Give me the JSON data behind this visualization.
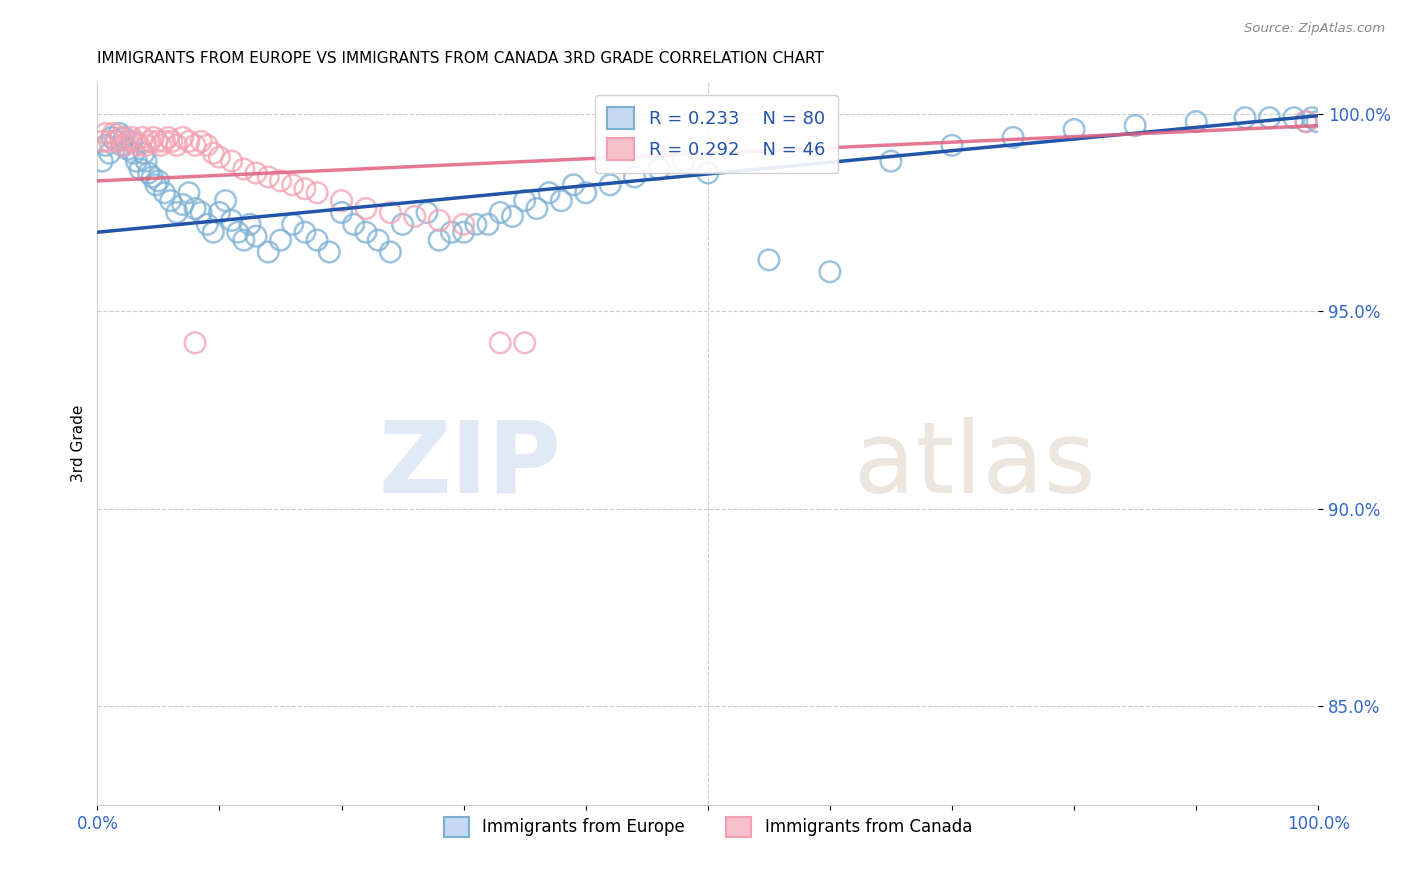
{
  "title": "IMMIGRANTS FROM EUROPE VS IMMIGRANTS FROM CANADA 3RD GRADE CORRELATION CHART",
  "source": "Source: ZipAtlas.com",
  "ylabel": "3rd Grade",
  "legend_blue_label": "Immigrants from Europe",
  "legend_pink_label": "Immigrants from Canada",
  "legend_r_blue": "R = 0.233",
  "legend_n_blue": "N = 80",
  "legend_r_pink": "R = 0.292",
  "legend_n_pink": "N = 46",
  "blue_color": "#7bafd4",
  "pink_color": "#f4a0b0",
  "blue_line_color": "#2255aa",
  "pink_line_color": "#e06080",
  "watermark_zip": "ZIP",
  "watermark_atlas": "atlas",
  "xlim": [
    0.0,
    1.0
  ],
  "ylim": [
    0.825,
    1.008
  ],
  "yticks": [
    0.85,
    0.9,
    0.95,
    1.0
  ],
  "ytick_labels": [
    "85.0%",
    "90.0%",
    "95.0%",
    "100.0%"
  ],
  "blue_line_x0": 0.0,
  "blue_line_y0": 0.97,
  "blue_line_x1": 1.0,
  "blue_line_y1": 0.9995,
  "pink_line_x0": 0.0,
  "pink_line_y0": 0.983,
  "pink_line_x1": 1.0,
  "pink_line_y1": 0.997,
  "blue_x": [
    0.004,
    0.007,
    0.01,
    0.012,
    0.015,
    0.018,
    0.02,
    0.022,
    0.025,
    0.028,
    0.03,
    0.032,
    0.035,
    0.038,
    0.04,
    0.042,
    0.045,
    0.048,
    0.05,
    0.055,
    0.06,
    0.065,
    0.07,
    0.075,
    0.08,
    0.085,
    0.09,
    0.095,
    0.1,
    0.105,
    0.11,
    0.115,
    0.12,
    0.125,
    0.13,
    0.14,
    0.15,
    0.16,
    0.17,
    0.18,
    0.19,
    0.2,
    0.21,
    0.22,
    0.23,
    0.24,
    0.25,
    0.27,
    0.29,
    0.31,
    0.33,
    0.35,
    0.37,
    0.39,
    0.28,
    0.3,
    0.32,
    0.34,
    0.36,
    0.38,
    0.4,
    0.42,
    0.44,
    0.46,
    0.48,
    0.5,
    0.55,
    0.6,
    0.65,
    0.7,
    0.75,
    0.8,
    0.85,
    0.9,
    0.94,
    0.96,
    0.98,
    0.99,
    0.995,
    0.999
  ],
  "blue_y": [
    0.988,
    0.992,
    0.99,
    0.994,
    0.993,
    0.995,
    0.992,
    0.994,
    0.991,
    0.993,
    0.99,
    0.988,
    0.986,
    0.99,
    0.988,
    0.985,
    0.984,
    0.982,
    0.983,
    0.98,
    0.978,
    0.975,
    0.977,
    0.98,
    0.976,
    0.975,
    0.972,
    0.97,
    0.975,
    0.978,
    0.973,
    0.97,
    0.968,
    0.972,
    0.969,
    0.965,
    0.968,
    0.972,
    0.97,
    0.968,
    0.965,
    0.975,
    0.972,
    0.97,
    0.968,
    0.965,
    0.972,
    0.975,
    0.97,
    0.972,
    0.975,
    0.978,
    0.98,
    0.982,
    0.968,
    0.97,
    0.972,
    0.974,
    0.976,
    0.978,
    0.98,
    0.982,
    0.984,
    0.986,
    0.988,
    0.985,
    0.963,
    0.96,
    0.988,
    0.992,
    0.994,
    0.996,
    0.997,
    0.998,
    0.999,
    0.999,
    0.999,
    0.998,
    0.999,
    0.998
  ],
  "pink_x": [
    0.004,
    0.007,
    0.01,
    0.013,
    0.016,
    0.019,
    0.022,
    0.025,
    0.028,
    0.031,
    0.034,
    0.037,
    0.04,
    0.043,
    0.046,
    0.049,
    0.052,
    0.055,
    0.058,
    0.061,
    0.065,
    0.07,
    0.075,
    0.08,
    0.085,
    0.09,
    0.095,
    0.1,
    0.11,
    0.12,
    0.13,
    0.14,
    0.15,
    0.16,
    0.17,
    0.18,
    0.2,
    0.22,
    0.24,
    0.26,
    0.28,
    0.3,
    0.33,
    0.35,
    0.08,
    0.99
  ],
  "pink_y": [
    0.993,
    0.995,
    0.993,
    0.995,
    0.993,
    0.994,
    0.992,
    0.993,
    0.994,
    0.993,
    0.992,
    0.994,
    0.992,
    0.993,
    0.994,
    0.993,
    0.992,
    0.993,
    0.994,
    0.993,
    0.992,
    0.994,
    0.993,
    0.992,
    0.993,
    0.992,
    0.99,
    0.989,
    0.988,
    0.986,
    0.985,
    0.984,
    0.983,
    0.982,
    0.981,
    0.98,
    0.978,
    0.976,
    0.975,
    0.974,
    0.973,
    0.972,
    0.942,
    0.942,
    0.942,
    0.998
  ]
}
